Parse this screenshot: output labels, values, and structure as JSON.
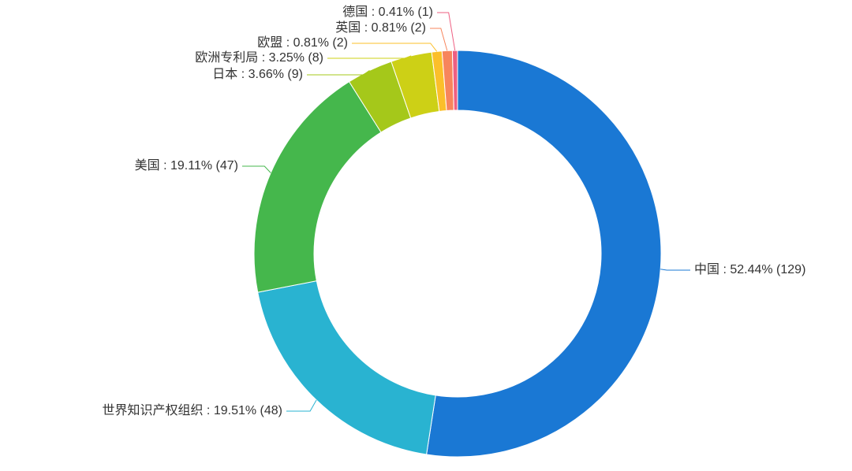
{
  "chart_data": {
    "type": "donut",
    "values": [
      129,
      48,
      47,
      9,
      8,
      2,
      2,
      1
    ],
    "value_labels": [
      "中国 : 52.44% (129)",
      "世界知识产权组织 : 19.51% (48)",
      "美国 : 19.11% (47)",
      "日本 : 3.66% (9)",
      "欧洲专利局 : 3.25% (8)",
      "欧盟 : 0.81% (2)",
      "英国 : 0.81% (2)",
      "德国 : 0.41% (1)"
    ],
    "colors": [
      "#1a78d4",
      "#29b3d1",
      "#45b74c",
      "#a5c81a",
      "#cdd016",
      "#fbbf2a",
      "#f7855c",
      "#ee5f82"
    ]
  }
}
